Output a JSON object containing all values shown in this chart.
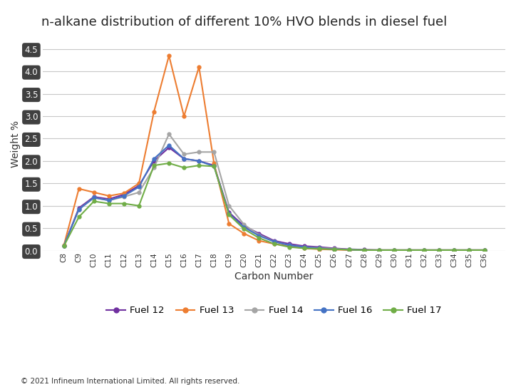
{
  "title": "n-alkane distribution of different 10% HVO blends in diesel fuel",
  "xlabel": "Carbon Number",
  "ylabel": "Weight %",
  "copyright": "© 2021 Infineum International Limited. All rights reserved.",
  "carbon_numbers": [
    "C8",
    "C9",
    "C10",
    "C11",
    "C12",
    "C13",
    "C14",
    "C15",
    "C16",
    "C17",
    "C18",
    "C19",
    "C20",
    "C21",
    "C22",
    "C23",
    "C24",
    "C25",
    "C26",
    "C27",
    "C28",
    "C29",
    "C30",
    "C31",
    "C32",
    "C33",
    "C34",
    "C35",
    "C36"
  ],
  "fuel12": [
    0.11,
    0.95,
    1.2,
    1.15,
    1.25,
    1.45,
    2.0,
    2.3,
    2.05,
    2.0,
    1.9,
    0.85,
    0.55,
    0.38,
    0.22,
    0.15,
    0.1,
    0.08,
    0.05,
    0.03,
    0.02,
    0.01,
    0.01,
    0.01,
    0.01,
    0.01,
    0.01,
    0.01,
    0.01
  ],
  "fuel13": [
    0.12,
    1.38,
    1.3,
    1.22,
    1.28,
    1.5,
    3.1,
    4.35,
    3.0,
    4.1,
    1.95,
    0.6,
    0.38,
    0.22,
    0.15,
    0.1,
    0.05,
    0.03,
    0.02,
    0.01,
    0.01,
    0.01,
    0.01,
    0.01,
    0.01,
    0.01,
    0.01,
    0.01,
    0.01
  ],
  "fuel14": [
    0.11,
    0.92,
    1.18,
    1.12,
    1.2,
    1.3,
    1.85,
    2.6,
    2.15,
    2.2,
    2.2,
    1.0,
    0.58,
    0.35,
    0.2,
    0.12,
    0.08,
    0.06,
    0.04,
    0.02,
    0.01,
    0.01,
    0.01,
    0.01,
    0.01,
    0.01,
    0.01,
    0.01,
    0.01
  ],
  "fuel16": [
    0.11,
    0.92,
    1.18,
    1.12,
    1.22,
    1.42,
    2.05,
    2.35,
    2.05,
    2.0,
    1.88,
    0.82,
    0.52,
    0.33,
    0.2,
    0.12,
    0.08,
    0.05,
    0.03,
    0.02,
    0.01,
    0.01,
    0.01,
    0.01,
    0.01,
    0.01,
    0.01,
    0.01,
    0.01
  ],
  "fuel17": [
    0.1,
    0.75,
    1.1,
    1.05,
    1.05,
    1.0,
    1.9,
    1.95,
    1.85,
    1.9,
    1.88,
    0.8,
    0.48,
    0.28,
    0.15,
    0.08,
    0.05,
    0.04,
    0.03,
    0.02,
    0.01,
    0.01,
    0.01,
    0.01,
    0.01,
    0.01,
    0.01,
    0.01,
    0.01
  ],
  "fuel12_color": "#7030a0",
  "fuel13_color": "#ed7d31",
  "fuel14_color": "#a5a5a5",
  "fuel16_color": "#4472c4",
  "fuel17_color": "#70ad47",
  "ylim": [
    0.0,
    4.75
  ],
  "yticks": [
    0.0,
    0.5,
    1.0,
    1.5,
    2.0,
    2.5,
    3.0,
    3.5,
    4.0,
    4.5
  ],
  "background_color": "#ffffff",
  "tick_label_bg": "#404040",
  "tick_label_fg": "#ffffff",
  "grid_color": "#c8c8c8",
  "title_fontsize": 13,
  "axis_label_fontsize": 10,
  "legend_fontsize": 9.5,
  "fig_width": 7.24,
  "fig_height": 5.43,
  "dpi": 100
}
